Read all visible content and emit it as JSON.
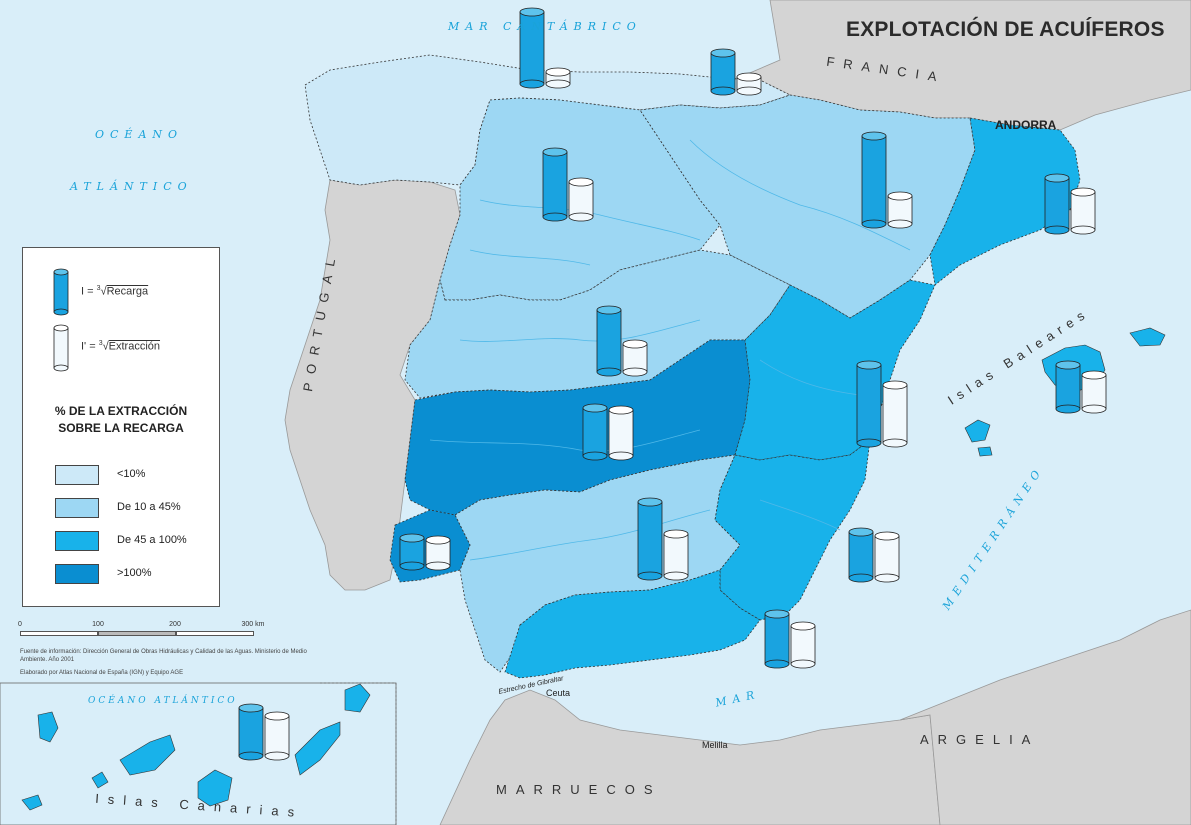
{
  "title": "EXPLOTACIÓN DE ACUÍFEROS",
  "labels": {
    "mar_cantabrico": "MAR CANTÁBRICO",
    "oceano": "OCÉANO",
    "atlantico": "ATLÁNTICO",
    "francia": "FRANCIA",
    "andorra": "ANDORRA",
    "portugal": "PORTUGAL",
    "islas_baleares": "Islas Baleares",
    "mediterraneo": "MEDITERRÁNEO",
    "mar": "MAR",
    "argelia": "ARGELIA",
    "marruecos": "MARRUECOS",
    "ceuta": "Ceuta",
    "melilla": "Melilla",
    "estrecho": "Estrecho de Gibraltar",
    "oceano_atlantico_canarias": "OCÉANO ATLÁNTICO",
    "islas_canarias": "Islas Canarias"
  },
  "legend": {
    "recarga_eq_prefix": "I =",
    "recarga_eq_rad": "Recarga",
    "extraccion_eq_prefix": "I' =",
    "extraccion_eq_rad": "Extracción",
    "root_index": "3",
    "heading_line1": "% DE LA EXTRACCIÓN",
    "heading_line2": "SOBRE LA RECARGA",
    "classes": [
      {
        "label": "<10%",
        "color": "#cde9f8"
      },
      {
        "label": "De 10 a 45%",
        "color": "#9dd7f3"
      },
      {
        "label": "De 45 a 100%",
        "color": "#18b2ea"
      },
      {
        "label": ">100%",
        "color": "#0a8ed1"
      }
    ]
  },
  "scale": {
    "ticks": [
      "0",
      "100",
      "200",
      "300 km"
    ]
  },
  "source": "Fuente de información: Dirección General de Obras Hidráulicas y Calidad de las Aguas. Ministerio de Medio Ambiente. Año 2001",
  "credit": "Elaborado por Atlas Nacional de España (IGN) y Equipo AGE",
  "colors": {
    "sea": "#d9eef9",
    "land_foreign": "#d4d4d4",
    "portugal": "#d4d4d4",
    "cylinder_recarga": "#1aa3e0",
    "cylinder_extraccion": "#f2f9fd",
    "river": "#4fb8e8"
  },
  "basins": [
    {
      "name": "norte",
      "class": 0
    },
    {
      "name": "duero",
      "class": 1
    },
    {
      "name": "ebro",
      "class": 1
    },
    {
      "name": "cataluna",
      "class": 2
    },
    {
      "name": "tajo",
      "class": 1
    },
    {
      "name": "guadiana",
      "class": 3
    },
    {
      "name": "jucar",
      "class": 2
    },
    {
      "name": "guadalquivir",
      "class": 1
    },
    {
      "name": "segura",
      "class": 2
    },
    {
      "name": "sur",
      "class": 2
    },
    {
      "name": "guadiana-ii",
      "class": 3
    },
    {
      "name": "baleares",
      "class": 2
    },
    {
      "name": "canarias",
      "class": 2
    }
  ]
}
